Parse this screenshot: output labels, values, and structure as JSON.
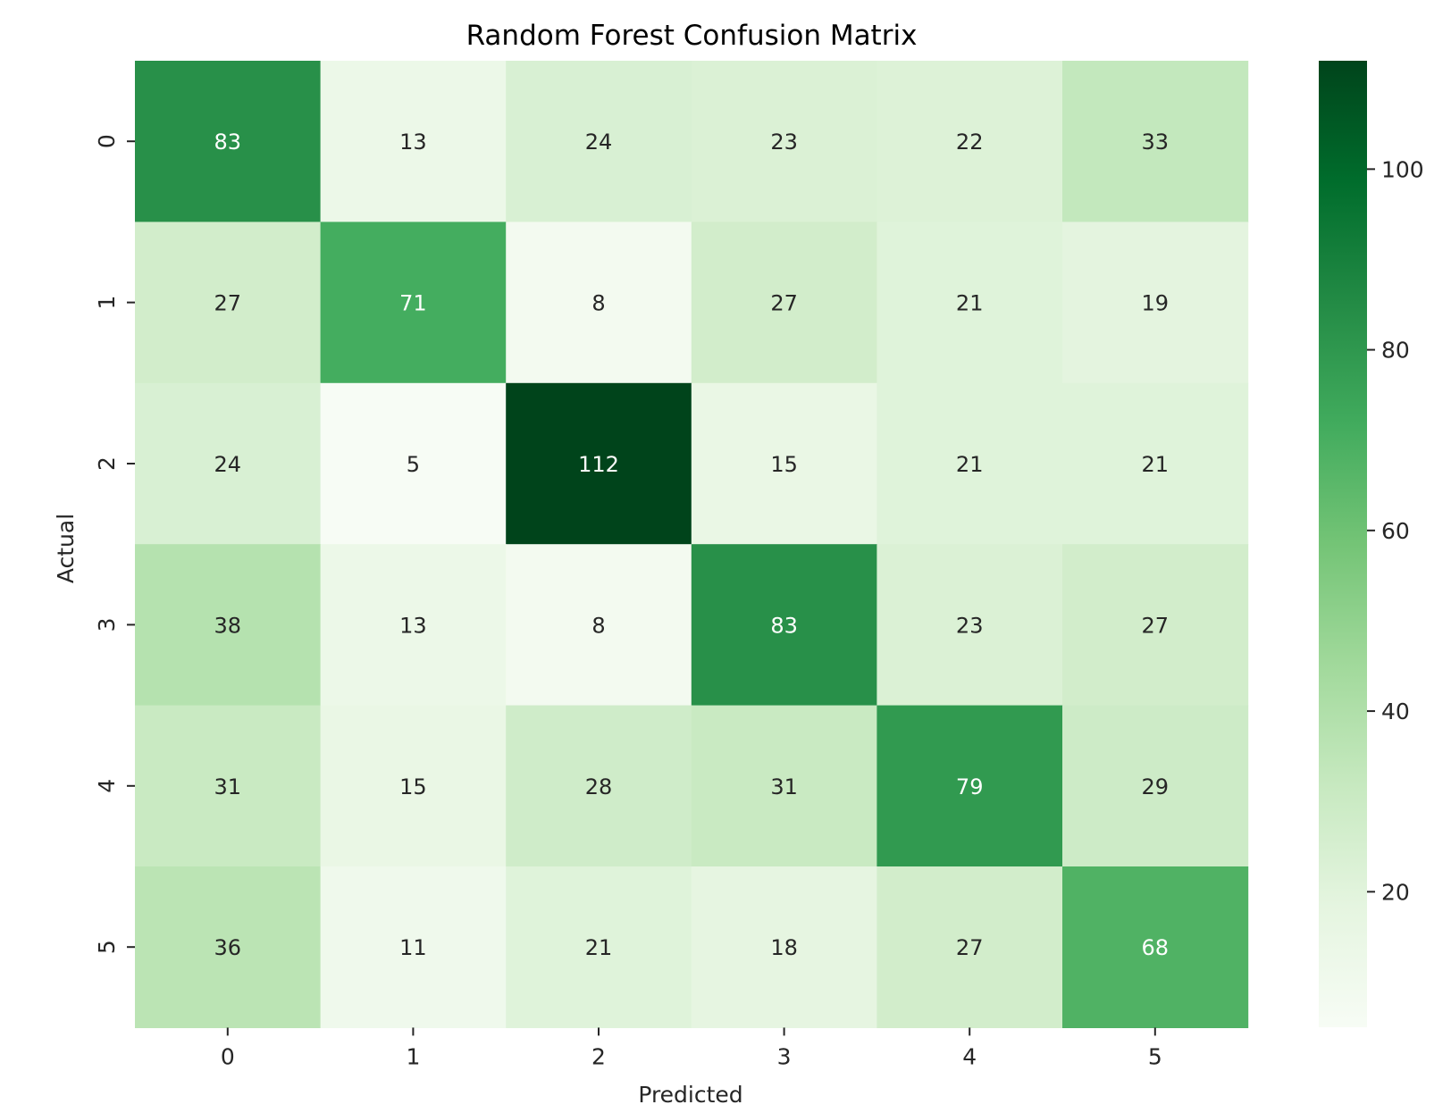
{
  "chart_data": {
    "type": "heatmap",
    "title": "Random Forest Confusion Matrix",
    "xlabel": "Predicted",
    "ylabel": "Actual",
    "x_categories": [
      "0",
      "1",
      "2",
      "3",
      "4",
      "5"
    ],
    "y_categories": [
      "0",
      "1",
      "2",
      "3",
      "4",
      "5"
    ],
    "values": [
      [
        83,
        13,
        24,
        23,
        22,
        33
      ],
      [
        27,
        71,
        8,
        27,
        21,
        19
      ],
      [
        24,
        5,
        112,
        15,
        21,
        21
      ],
      [
        38,
        13,
        8,
        83,
        23,
        27
      ],
      [
        31,
        15,
        28,
        31,
        79,
        29
      ],
      [
        36,
        11,
        21,
        18,
        27,
        68
      ]
    ],
    "colormap": "Greens",
    "color_range": [
      5,
      112
    ],
    "colorbar_ticks": [
      20,
      40,
      60,
      80,
      100
    ],
    "colors": {
      "low": "#f7fcf5",
      "high": "#00441b",
      "light_text": "#ffffff",
      "dark_text": "#262626"
    },
    "grid": false,
    "legend": "colorbar-right"
  }
}
